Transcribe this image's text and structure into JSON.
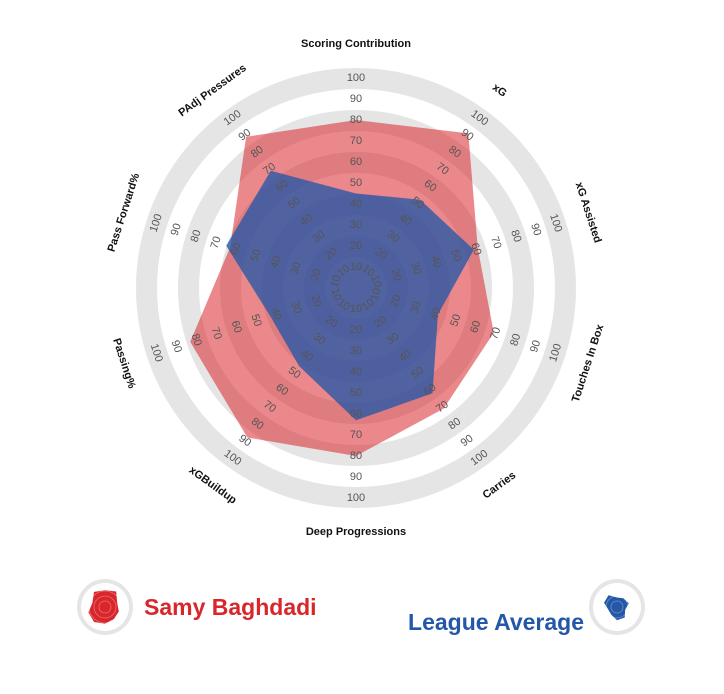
{
  "chart_data": {
    "type": "radar",
    "axes": [
      "Scoring Contribution",
      "xG",
      "xG Assisted",
      "Touches In Box",
      "Carries",
      "Deep Progressions",
      "xGBuildup",
      "Passing%",
      "Pass Forward%",
      "PAdj Pressures"
    ],
    "rlim": [
      0,
      100
    ],
    "tick_values": [
      10,
      20,
      30,
      40,
      50,
      60,
      70,
      80,
      90,
      100
    ],
    "series": [
      {
        "name": "Samy Baghdadi",
        "color": "#d9262b",
        "values": [
          80,
          91,
          61,
          69,
          71,
          80,
          88,
          83,
          63,
          89
        ]
      },
      {
        "name": "League Average",
        "color": "#2557a8",
        "values": [
          45,
          52,
          59,
          41,
          62,
          63,
          46,
          43,
          65,
          69
        ]
      }
    ]
  },
  "legend": {
    "player": {
      "label": "Samy Baghdadi",
      "color": "#d9262b",
      "icon": "radar-icon"
    },
    "league": {
      "label": "League Average",
      "color": "#2557a8",
      "icon": "radar-icon"
    }
  }
}
